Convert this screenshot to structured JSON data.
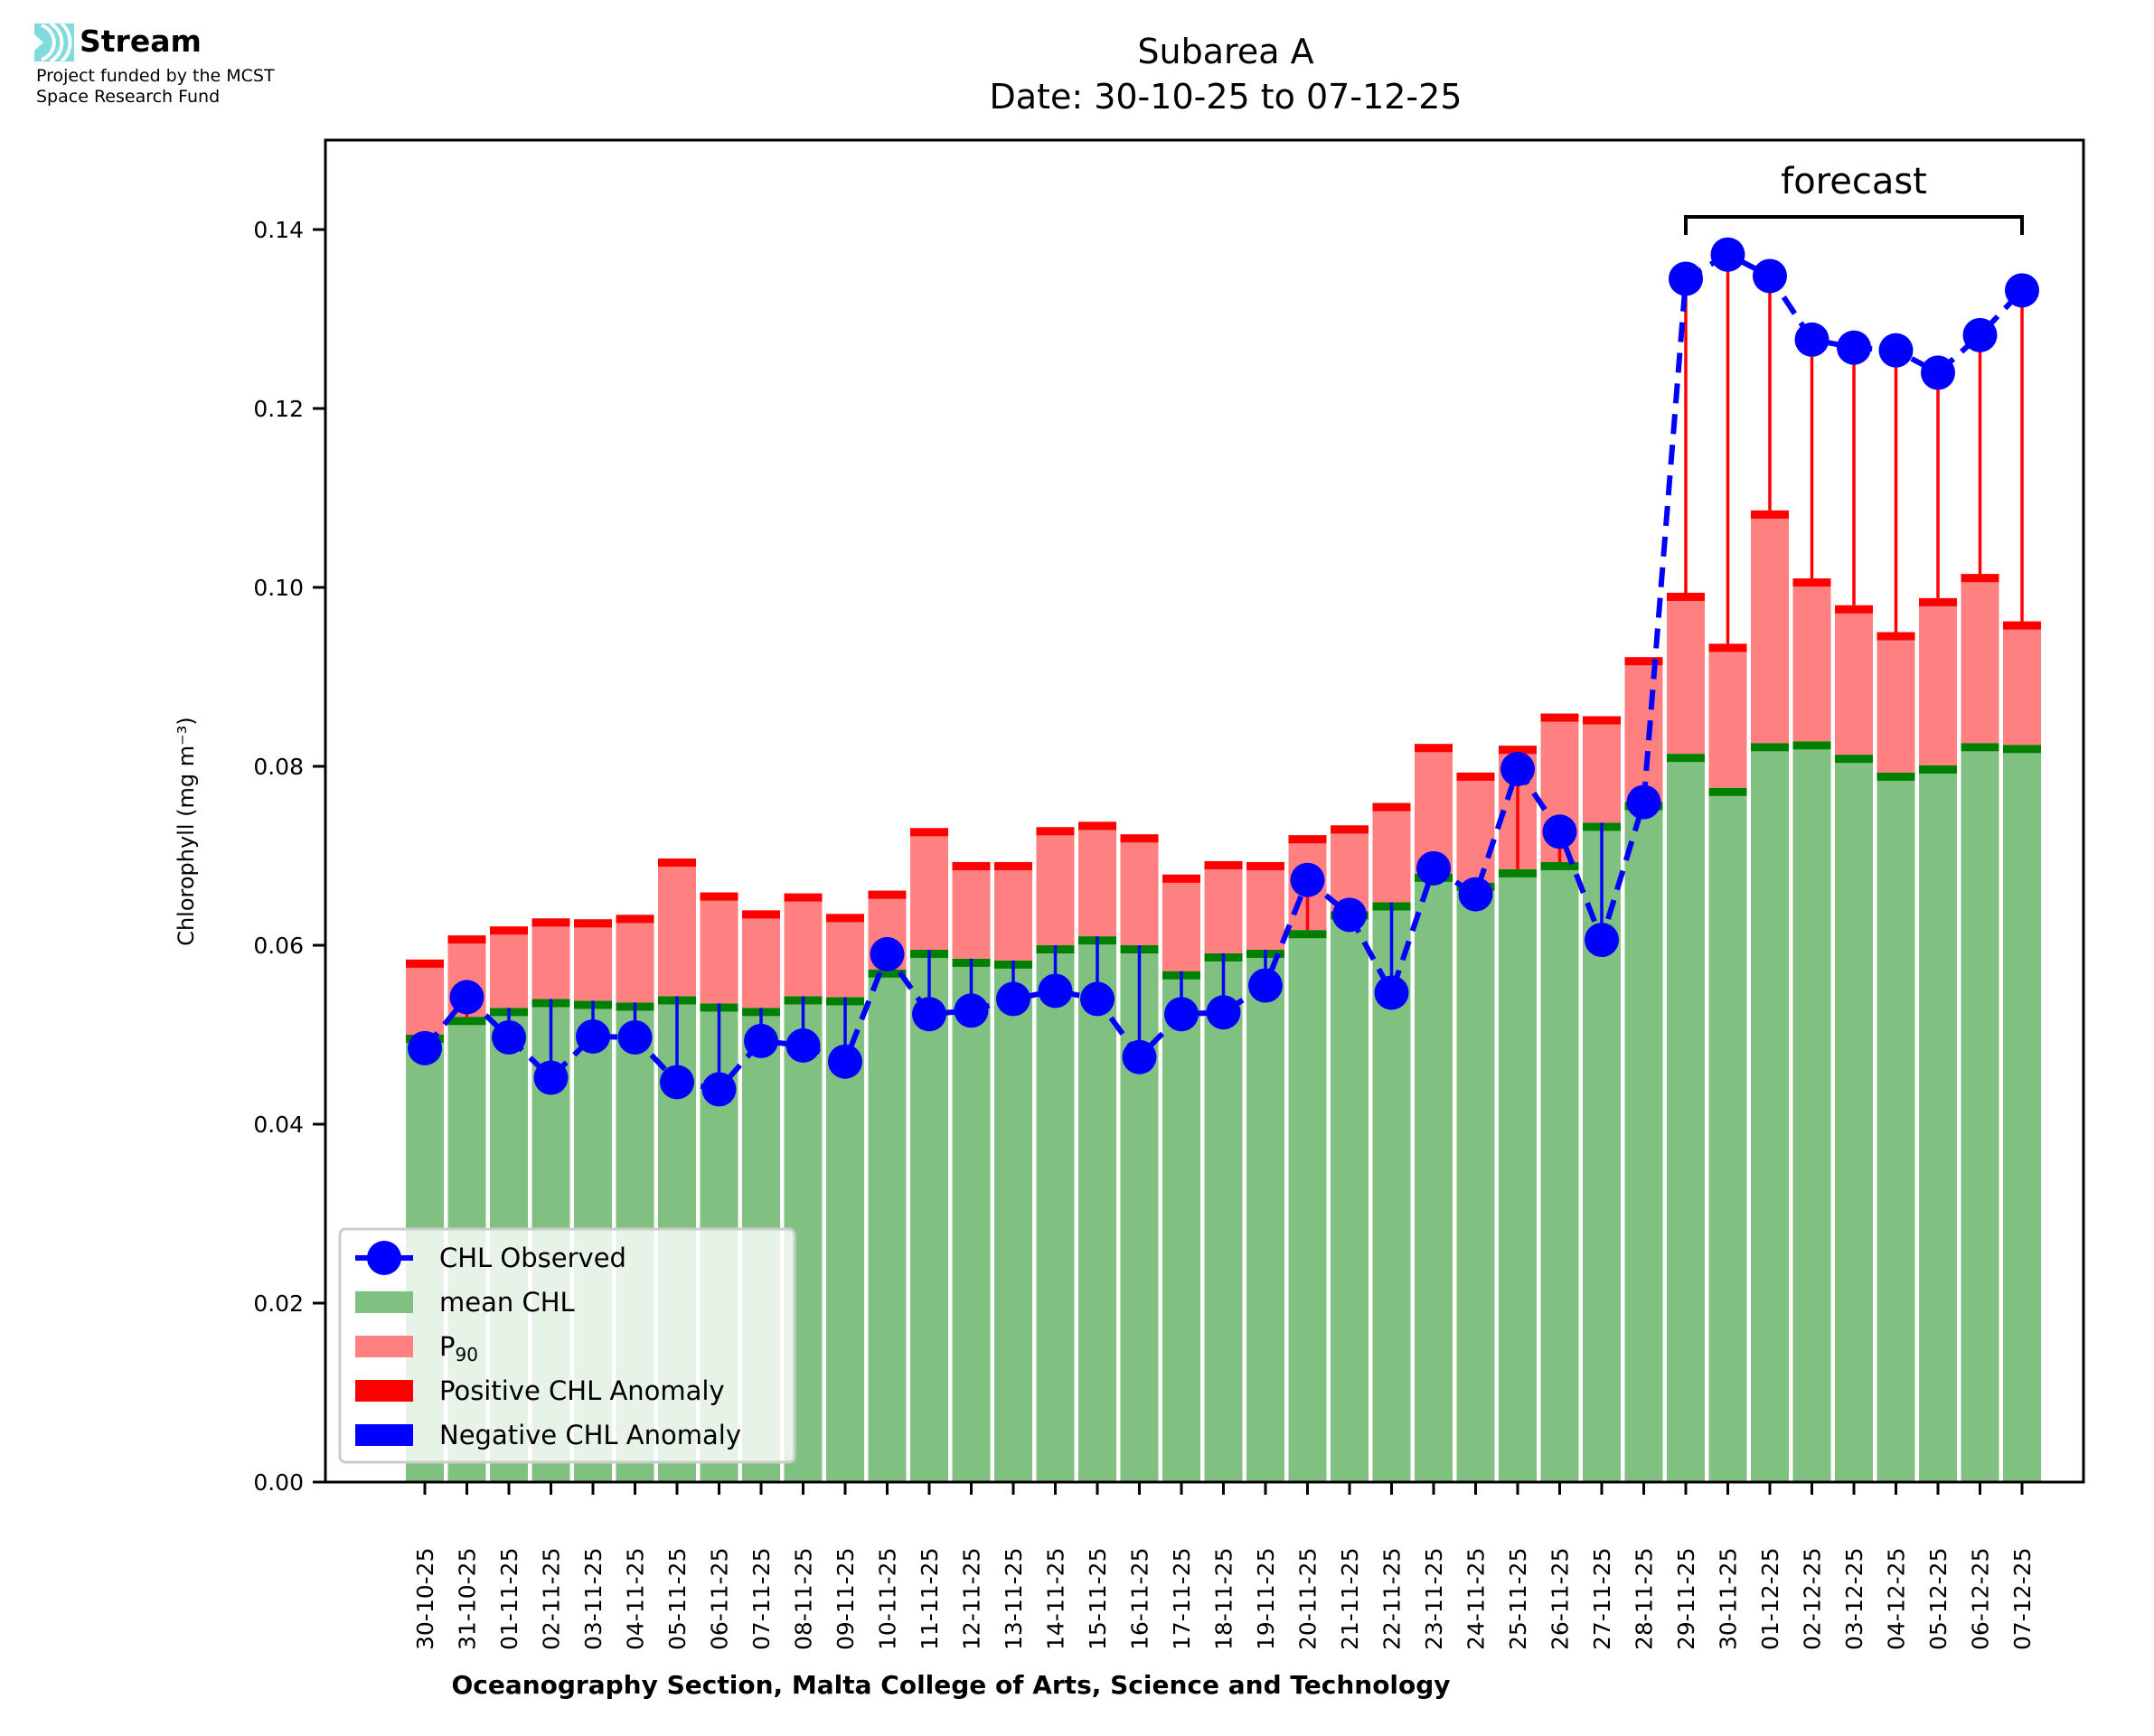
{
  "branding": {
    "logo_text": "Stream",
    "funding_line1": "Project funded by the MCST",
    "funding_line2": "Space Research Fund",
    "logo_color": "#7fdbdc"
  },
  "chart_data": {
    "type": "bar",
    "title": "Subarea A",
    "subtitle": "Date: 30-10-25 to 07-12-25",
    "xlabel": "Oceanography Section, Malta College of Arts, Science and Technology",
    "ylabel": "Chlorophyll (mg m⁻³)",
    "ylim": [
      0,
      0.15
    ],
    "yticks": [
      "0.00",
      "0.02",
      "0.04",
      "0.06",
      "0.08",
      "0.10",
      "0.12",
      "0.14"
    ],
    "ytick_values": [
      0,
      0.02,
      0.04,
      0.06,
      0.08,
      0.1,
      0.12,
      0.14
    ],
    "grid": false,
    "legend_position": "bottom-left",
    "annotation": {
      "text": "forecast",
      "from": "29-11-25",
      "to": "07-12-25"
    },
    "categories": [
      "30-10-25",
      "31-10-25",
      "01-11-25",
      "02-11-25",
      "03-11-25",
      "04-11-25",
      "05-11-25",
      "06-11-25",
      "07-11-25",
      "08-11-25",
      "09-11-25",
      "10-11-25",
      "11-11-25",
      "12-11-25",
      "13-11-25",
      "14-11-25",
      "15-11-25",
      "16-11-25",
      "17-11-25",
      "18-11-25",
      "19-11-25",
      "20-11-25",
      "21-11-25",
      "22-11-25",
      "23-11-25",
      "24-11-25",
      "25-11-25",
      "26-11-25",
      "27-11-25",
      "28-11-25",
      "29-11-25",
      "30-11-25",
      "01-12-25",
      "02-12-25",
      "03-12-25",
      "04-12-25",
      "05-12-25",
      "06-12-25",
      "07-12-25"
    ],
    "forecast_start_index": 30,
    "series": [
      {
        "name": "mean CHL",
        "kind": "bar",
        "color": "#80c080",
        "edge_color": "#008000",
        "values": [
          0.05,
          0.052,
          0.053,
          0.054,
          0.0538,
          0.0536,
          0.0543,
          0.0535,
          0.053,
          0.0543,
          0.0542,
          0.0573,
          0.0595,
          0.0585,
          0.0583,
          0.06,
          0.061,
          0.06,
          0.0571,
          0.0591,
          0.0595,
          0.0617,
          0.0638,
          0.0648,
          0.068,
          0.067,
          0.0685,
          0.0693,
          0.0737,
          0.076,
          0.0814,
          0.0776,
          0.0826,
          0.0828,
          0.0813,
          0.0793,
          0.0801,
          0.0826,
          0.0824
        ]
      },
      {
        "name": "P₉₀",
        "kind": "bar",
        "color": "#ff8080",
        "edge_color": "#ff0000",
        "values": [
          0.0584,
          0.0611,
          0.0621,
          0.063,
          0.0629,
          0.0634,
          0.0697,
          0.0659,
          0.0639,
          0.0658,
          0.0635,
          0.0661,
          0.0731,
          0.0693,
          0.0693,
          0.0732,
          0.0738,
          0.0724,
          0.0679,
          0.0694,
          0.0693,
          0.0723,
          0.0734,
          0.0759,
          0.0825,
          0.0793,
          0.0823,
          0.0859,
          0.0856,
          0.0922,
          0.0994,
          0.0937,
          0.1086,
          0.101,
          0.098,
          0.095,
          0.0988,
          0.1015,
          0.0962
        ]
      },
      {
        "name": "CHL Observed",
        "kind": "line",
        "color": "#0000ff",
        "values": [
          0.0485,
          0.0542,
          0.0497,
          0.0452,
          0.0498,
          0.0497,
          0.0447,
          0.0439,
          0.0493,
          0.0488,
          0.047,
          0.059,
          0.0523,
          0.0527,
          0.054,
          0.0549,
          0.054,
          0.0475,
          0.0523,
          0.0525,
          0.0555,
          0.0673,
          0.0634,
          0.0547,
          0.0686,
          0.0657,
          0.0797,
          0.0727,
          0.0606,
          0.076,
          0.1345,
          0.1372,
          0.1348,
          0.1277,
          0.1268,
          0.1265,
          0.124,
          0.1282,
          0.1332
        ]
      }
    ],
    "legend": [
      {
        "label": "CHL Observed",
        "kind": "line-marker",
        "color": "#0000ff"
      },
      {
        "label": "mean CHL",
        "kind": "patch",
        "color": "#80c080"
      },
      {
        "label": "P",
        "sub": "90",
        "kind": "patch",
        "color": "#ff8080"
      },
      {
        "label": "Positive CHL Anomaly",
        "kind": "patch",
        "color": "#ff0000"
      },
      {
        "label": "Negative CHL Anomaly",
        "kind": "patch",
        "color": "#0000ff"
      }
    ]
  }
}
